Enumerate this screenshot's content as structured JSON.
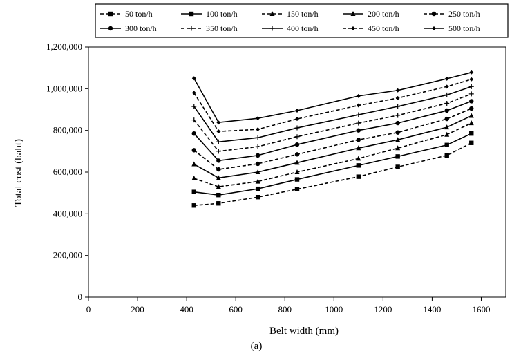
{
  "chart_data": {
    "type": "line",
    "title": "",
    "xlabel": "Belt width (mm)",
    "ylabel": "Total cost (baht)",
    "caption": "(a)",
    "xlim": [
      0,
      1700
    ],
    "ylim": [
      0,
      1200000
    ],
    "xticks": [
      0,
      200,
      400,
      600,
      800,
      1000,
      1200,
      1400,
      1600
    ],
    "xtick_labels": [
      "0",
      "200",
      "400",
      "600",
      "800",
      "1000",
      "1200",
      "1400",
      "1600"
    ],
    "yticks": [
      0,
      200000,
      400000,
      600000,
      800000,
      1000000,
      1200000
    ],
    "ytick_labels": [
      "0",
      "200,000",
      "400,000",
      "600,000",
      "800,000",
      "1,000,000",
      "1,200,000"
    ],
    "grid": false,
    "legend_position": "top",
    "x": [
      430,
      530,
      690,
      850,
      1100,
      1260,
      1460,
      1560
    ],
    "series": [
      {
        "name": "50 ton/h",
        "line": "dashed",
        "marker": "square",
        "values": [
          440000,
          450000,
          480000,
          518000,
          578000,
          625000,
          680000,
          740000
        ]
      },
      {
        "name": "100 ton/h",
        "line": "solid",
        "marker": "square",
        "values": [
          505000,
          490000,
          520000,
          565000,
          632000,
          675000,
          730000,
          785000
        ]
      },
      {
        "name": "150 ton/h",
        "line": "dashed",
        "marker": "triangle",
        "values": [
          570000,
          530000,
          555000,
          600000,
          665000,
          715000,
          780000,
          835000
        ]
      },
      {
        "name": "200 ton/h",
        "line": "solid",
        "marker": "triangle",
        "values": [
          638000,
          572000,
          600000,
          645000,
          715000,
          755000,
          815000,
          870000
        ]
      },
      {
        "name": "250 ton/h",
        "line": "dashed",
        "marker": "circle",
        "values": [
          705000,
          613000,
          640000,
          685000,
          755000,
          790000,
          855000,
          905000
        ]
      },
      {
        "name": "300 ton/h",
        "line": "solid",
        "marker": "circle",
        "values": [
          785000,
          655000,
          680000,
          732000,
          800000,
          835000,
          895000,
          940000
        ]
      },
      {
        "name": "350 ton/h",
        "line": "dashed",
        "marker": "plus",
        "values": [
          850000,
          700000,
          722000,
          770000,
          835000,
          872000,
          930000,
          975000
        ]
      },
      {
        "name": "400 ton/h",
        "line": "solid",
        "marker": "plus",
        "values": [
          915000,
          745000,
          765000,
          812000,
          875000,
          915000,
          970000,
          1010000
        ]
      },
      {
        "name": "450 ton/h",
        "line": "dashed",
        "marker": "diamond",
        "values": [
          980000,
          795000,
          805000,
          855000,
          920000,
          955000,
          1010000,
          1045000
        ]
      },
      {
        "name": "500 ton/h",
        "line": "solid",
        "marker": "diamond",
        "values": [
          1050000,
          838000,
          858000,
          895000,
          965000,
          992000,
          1048000,
          1078000
        ]
      }
    ]
  }
}
